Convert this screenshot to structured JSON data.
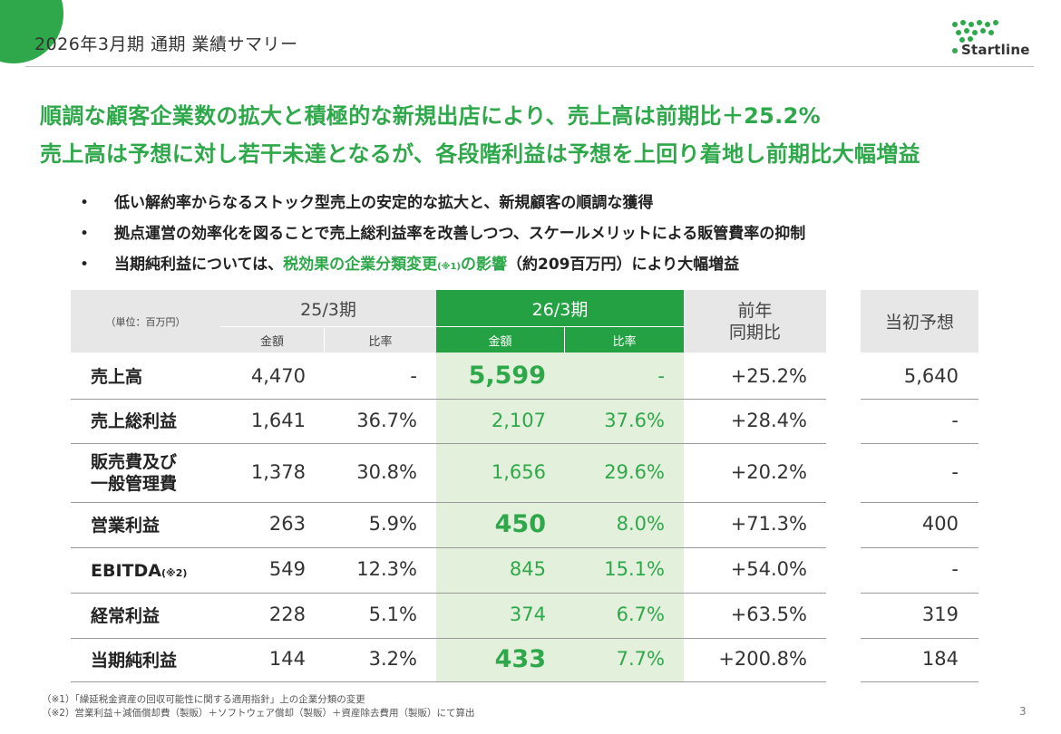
{
  "header": {
    "title": "2026年3月期 通期 業績サマリー",
    "logo_text": "Startline"
  },
  "headline": {
    "line1": "順調な顧客企業数の拡大と積極的な新規出店により、売上高は前期比＋25.2%",
    "line2": "売上高は予想に対し若干未達となるが、各段階利益は予想を上回り着地し前期比大幅増益"
  },
  "bullets": [
    {
      "text": "低い解約率からなるストック型売上の安定的な拡大と、新規顧客の順調な獲得"
    },
    {
      "text": "拠点運営の効率化を図ることで売上総利益率を改善しつつ、スケールメリットによる販管費率の抑制"
    },
    {
      "pre": "当期純利益については、",
      "green": "税効果の企業分類変更",
      "note": "(※1)",
      "green2": "の影響",
      "post": "（約209百万円）により大幅増益"
    }
  ],
  "table": {
    "unit_label": "（単位：百万円）",
    "period_prev": "25/3期",
    "period_curr": "26/3期",
    "yoy_header": "前年\n同期比",
    "forecast_header": "当初予想",
    "sub_amount": "金額",
    "sub_ratio": "比率",
    "rows": [
      {
        "label": "売上高",
        "note": "",
        "prev_amount": "4,470",
        "prev_ratio": "-",
        "curr_amount": "5,599",
        "curr_ratio": "-",
        "yoy": "+25.2%",
        "forecast": "5,640",
        "emphasis": true
      },
      {
        "label": "売上総利益",
        "note": "",
        "prev_amount": "1,641",
        "prev_ratio": "36.7%",
        "curr_amount": "2,107",
        "curr_ratio": "37.6%",
        "yoy": "+28.4%",
        "forecast": "-",
        "emphasis": false
      },
      {
        "label": "販売費及び\n一般管理費",
        "note": "",
        "prev_amount": "1,378",
        "prev_ratio": "30.8%",
        "curr_amount": "1,656",
        "curr_ratio": "29.6%",
        "yoy": "+20.2%",
        "forecast": "-",
        "emphasis": false
      },
      {
        "label": "営業利益",
        "note": "",
        "prev_amount": "263",
        "prev_ratio": "5.9%",
        "curr_amount": "450",
        "curr_ratio": "8.0%",
        "yoy": "+71.3%",
        "forecast": "400",
        "emphasis": true
      },
      {
        "label": "EBITDA",
        "note": "(※2)",
        "prev_amount": "549",
        "prev_ratio": "12.3%",
        "curr_amount": "845",
        "curr_ratio": "15.1%",
        "yoy": "+54.0%",
        "forecast": "-",
        "emphasis": false
      },
      {
        "label": "経常利益",
        "note": "",
        "prev_amount": "228",
        "prev_ratio": "5.1%",
        "curr_amount": "374",
        "curr_ratio": "6.7%",
        "yoy": "+63.5%",
        "forecast": "319",
        "emphasis": false
      },
      {
        "label": "当期純利益",
        "note": "",
        "prev_amount": "144",
        "prev_ratio": "3.2%",
        "curr_amount": "433",
        "curr_ratio": "7.7%",
        "yoy": "+200.8%",
        "forecast": "184",
        "emphasis": true
      }
    ]
  },
  "footnotes": [
    "（※1）「繰延税金資産の回収可能性に関する適用指針」上の企業分類の変更",
    "（※2）営業利益＋減価償却費（製販）＋ソフトウェア償却（製販）＋資産除去費用（製販）にて算出"
  ],
  "page_number": "3",
  "colors": {
    "accent": "#2ea84a",
    "header_green": "#23a143",
    "column_tint": "#e3f0dc",
    "header_gray": "#e7e7e7"
  }
}
